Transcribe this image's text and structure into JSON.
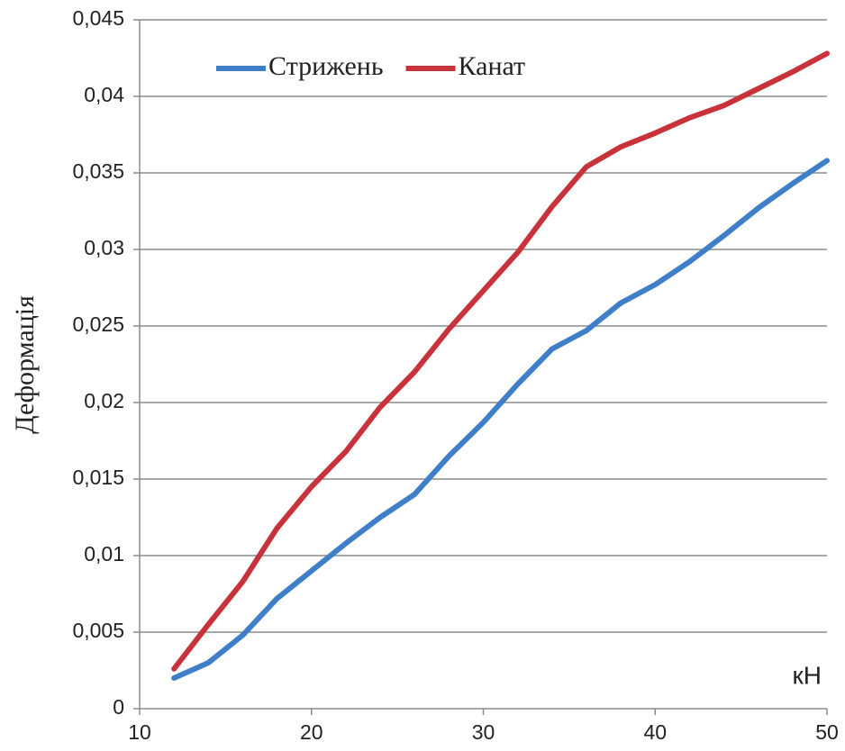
{
  "chart_data": {
    "type": "line",
    "ylabel": "Деформація",
    "xlabel": "кН",
    "x": [
      12,
      14,
      16,
      18,
      20,
      22,
      24,
      26,
      28,
      30,
      32,
      34,
      36,
      38,
      40,
      42,
      44,
      46,
      48,
      50
    ],
    "series": [
      {
        "name": "Стрижень",
        "color": "#3f7fc8",
        "values": [
          0.002,
          0.003,
          0.0048,
          0.0072,
          0.009,
          0.0108,
          0.0125,
          0.014,
          0.0165,
          0.0187,
          0.0212,
          0.0235,
          0.0247,
          0.0265,
          0.0277,
          0.0292,
          0.0309,
          0.0327,
          0.0343,
          0.0358
        ]
      },
      {
        "name": "Канат",
        "color": "#c8323a",
        "values": [
          0.0026,
          0.0055,
          0.0083,
          0.0118,
          0.0145,
          0.0168,
          0.0197,
          0.022,
          0.0248,
          0.0273,
          0.0298,
          0.0328,
          0.0354,
          0.0367,
          0.0376,
          0.0386,
          0.0394,
          0.0405,
          0.0416,
          0.0428
        ]
      }
    ],
    "xlim": [
      10,
      50
    ],
    "xticks": [
      10,
      20,
      30,
      40,
      50
    ],
    "ylim": [
      0,
      0.045
    ],
    "yticks": [
      0,
      {
        "value": 0.005,
        "label": "0,005"
      },
      {
        "value": 0.01,
        "label": "0,01"
      },
      {
        "value": 0.015,
        "label": "0,015"
      },
      {
        "value": 0.02,
        "label": "0,02"
      },
      {
        "value": 0.025,
        "label": "0,025"
      },
      {
        "value": 0.03,
        "label": "0,03"
      },
      {
        "value": 0.035,
        "label": "0,035"
      },
      {
        "value": 0.04,
        "label": "0,04"
      },
      {
        "value": 0.045,
        "label": "0,045"
      }
    ],
    "grid": true,
    "legend": "upper left"
  }
}
